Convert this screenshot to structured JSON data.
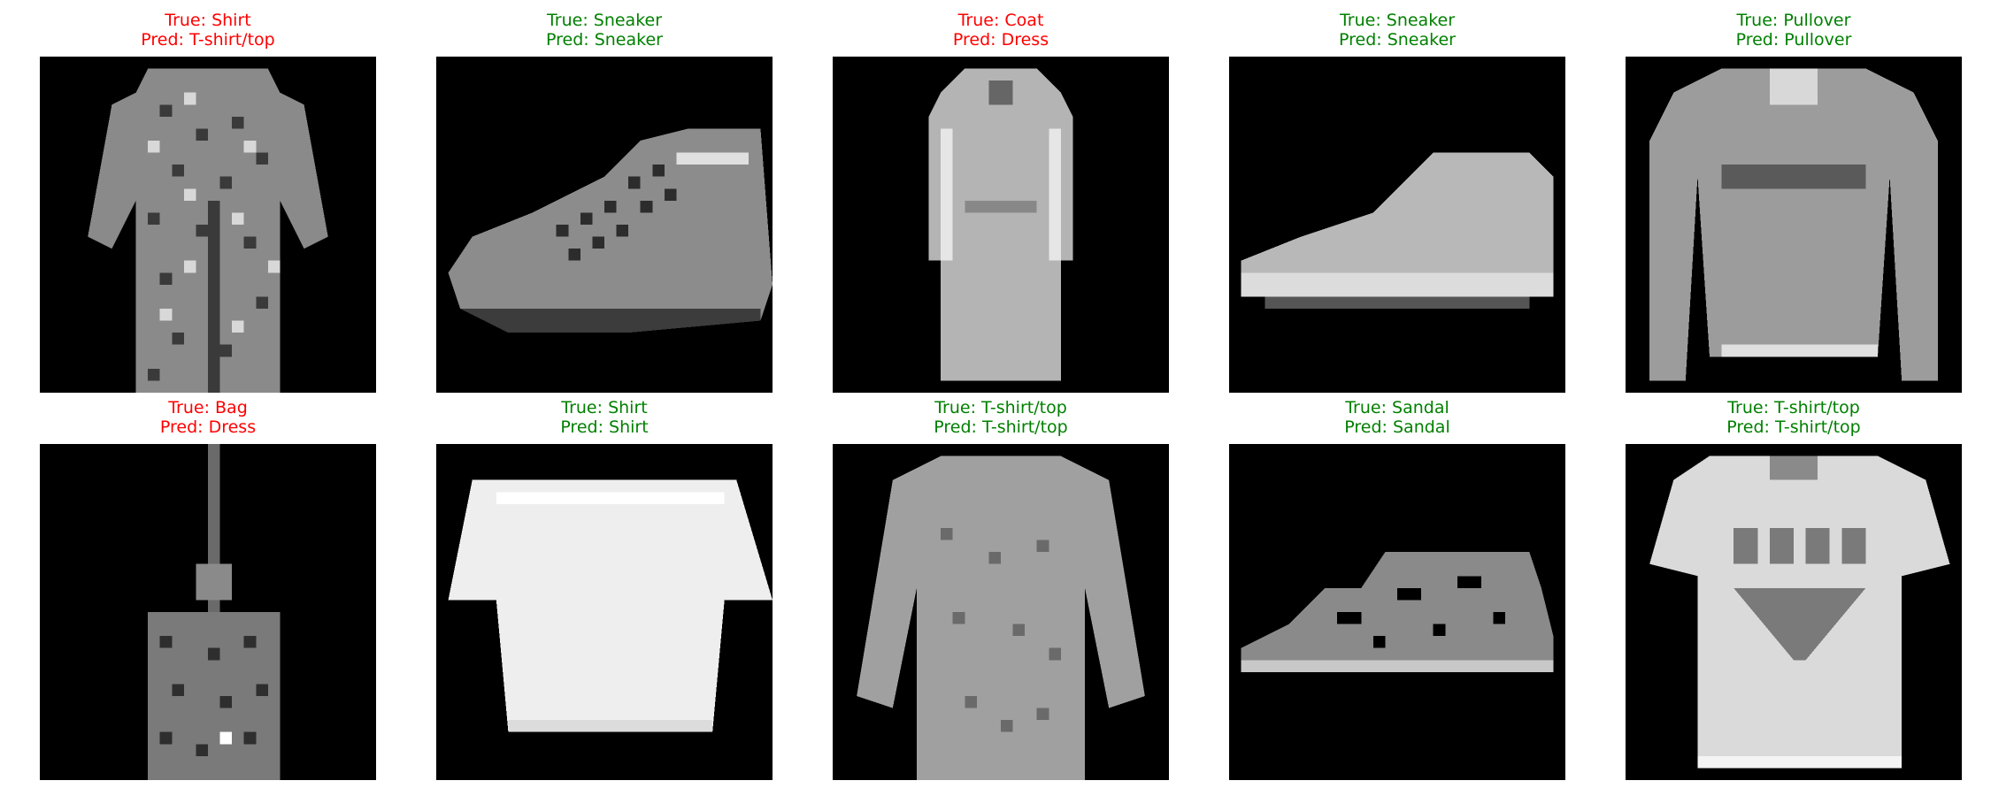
{
  "colors": {
    "correct": "#008000",
    "incorrect": "#ff0000",
    "background": "#000000"
  },
  "panels": [
    {
      "true_label": "True: Shirt",
      "pred_label": "Pred: T-shirt/top",
      "correct": false,
      "shape": "shirt-dotted"
    },
    {
      "true_label": "True: Sneaker",
      "pred_label": "Pred: Sneaker",
      "correct": true,
      "shape": "sneaker-laced"
    },
    {
      "true_label": "True: Coat",
      "pred_label": "Pred: Dress",
      "correct": false,
      "shape": "coat-long"
    },
    {
      "true_label": "True: Sneaker",
      "pred_label": "Pred: Sneaker",
      "correct": true,
      "shape": "sneaker-plain"
    },
    {
      "true_label": "True: Pullover",
      "pred_label": "Pred: Pullover",
      "correct": true,
      "shape": "pullover"
    },
    {
      "true_label": "True: Bag",
      "pred_label": "Pred: Dress",
      "correct": false,
      "shape": "bag-hanging"
    },
    {
      "true_label": "True: Shirt",
      "pred_label": "Pred: Shirt",
      "correct": true,
      "shape": "tshirt-white"
    },
    {
      "true_label": "True: T-shirt/top",
      "pred_label": "Pred: T-shirt/top",
      "correct": true,
      "shape": "shirt-long"
    },
    {
      "true_label": "True: Sandal",
      "pred_label": "Pred: Sandal",
      "correct": true,
      "shape": "sandal"
    },
    {
      "true_label": "True: T-shirt/top",
      "pred_label": "Pred: T-shirt/top",
      "correct": true,
      "shape": "tshirt-print"
    }
  ]
}
